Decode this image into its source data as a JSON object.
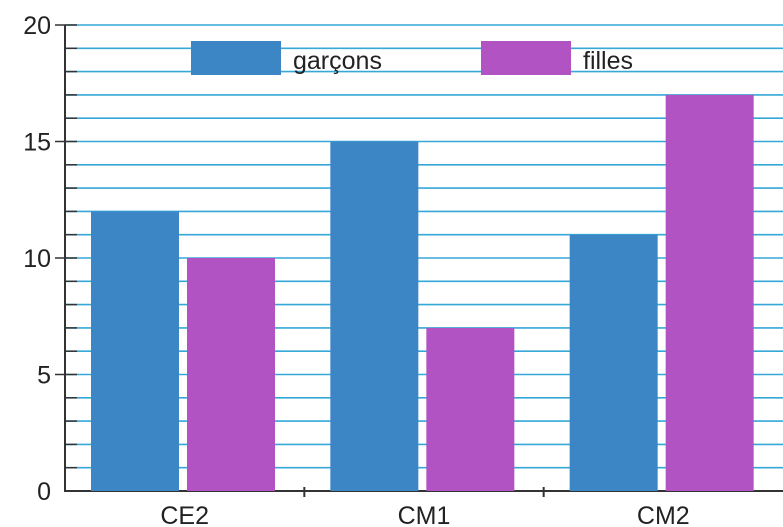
{
  "chart_data": {
    "type": "bar",
    "title": "",
    "xlabel": "",
    "ylabel": "",
    "categories": [
      "CE2",
      "CM1",
      "CM2"
    ],
    "series": [
      {
        "name": "garçons",
        "values": [
          12,
          15,
          11
        ],
        "color": "#3d86c6"
      },
      {
        "name": "filles",
        "values": [
          10,
          7,
          17
        ],
        "color": "#b253c4"
      }
    ],
    "ylim": [
      0,
      20
    ],
    "y_major_ticks": [
      0,
      5,
      10,
      15,
      20
    ],
    "y_minor_step": 1,
    "grid": true,
    "grid_color": "#35a8d8",
    "legend_position": "top"
  }
}
